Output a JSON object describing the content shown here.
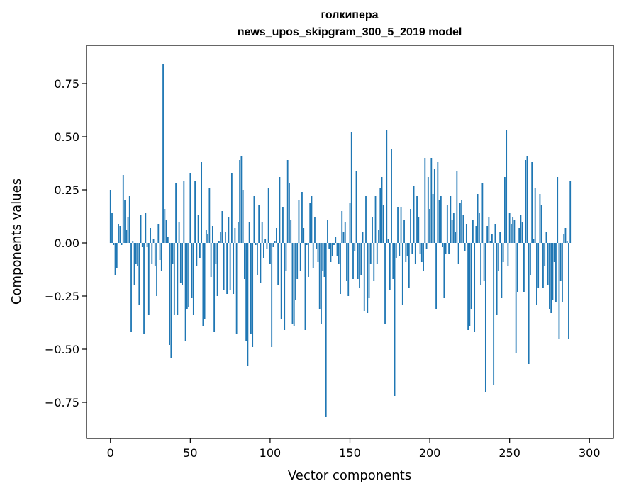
{
  "chart_data": {
    "type": "bar",
    "title": "голкипера",
    "subtitle": "news_upos_skipgram_300_5_2019 model",
    "xlabel": "Vector components",
    "ylabel": "Components values",
    "xlim": [
      -15,
      315
    ],
    "ylim": [
      -0.92,
      0.93
    ],
    "xticks": [
      0,
      50,
      100,
      150,
      200,
      250,
      300
    ],
    "yticks": [
      -0.75,
      -0.5,
      -0.25,
      0.0,
      0.25,
      0.5,
      0.75
    ],
    "xtick_labels": [
      "0",
      "50",
      "100",
      "150",
      "200",
      "250",
      "300"
    ],
    "ytick_labels": [
      "−0.75",
      "−0.50",
      "−0.25",
      "0.00",
      "0.25",
      "0.50",
      "0.75"
    ],
    "grid": false,
    "bar_color": "#1f77b4",
    "values": [
      0.25,
      0.14,
      -0.01,
      -0.15,
      -0.12,
      0.09,
      0.08,
      -0.01,
      0.32,
      0.2,
      0.06,
      0.12,
      0.22,
      -0.42,
      0.01,
      -0.2,
      -0.1,
      -0.11,
      -0.29,
      0.13,
      -0.02,
      -0.43,
      0.14,
      -0.02,
      -0.34,
      0.07,
      -0.1,
      0.02,
      -0.11,
      -0.25,
      0.09,
      -0.08,
      -0.13,
      0.84,
      0.16,
      0.11,
      0.03,
      -0.48,
      -0.54,
      -0.1,
      -0.34,
      0.28,
      -0.34,
      0.1,
      -0.19,
      -0.2,
      0.29,
      -0.46,
      -0.31,
      -0.3,
      0.33,
      -0.26,
      -0.34,
      0.29,
      -0.11,
      0.13,
      -0.07,
      0.38,
      -0.39,
      -0.36,
      0.06,
      0.04,
      0.26,
      -0.16,
      0.08,
      -0.42,
      -0.1,
      -0.25,
      0.01,
      0.05,
      0.15,
      -0.22,
      0.05,
      -0.24,
      0.12,
      -0.22,
      0.33,
      -0.24,
      0.07,
      -0.43,
      0.1,
      0.39,
      0.41,
      0.25,
      -0.17,
      -0.46,
      -0.58,
      0.1,
      -0.43,
      -0.49,
      0.22,
      -0.01,
      -0.15,
      0.18,
      -0.19,
      0.1,
      -0.07,
      0.02,
      -0.03,
      0.26,
      -0.1,
      -0.49,
      -0.02,
      0.01,
      0.07,
      -0.2,
      0.31,
      -0.36,
      0.17,
      -0.41,
      -0.13,
      0.39,
      0.28,
      0.11,
      -0.38,
      -0.39,
      -0.27,
      -0.17,
      0.2,
      -0.13,
      0.24,
      0.07,
      -0.41,
      -0.01,
      -0.16,
      0.19,
      0.22,
      -0.12,
      0.12,
      -0.03,
      -0.09,
      -0.31,
      -0.38,
      -0.13,
      -0.16,
      -0.82,
      0.11,
      -0.03,
      -0.09,
      -0.06,
      -0.01,
      0.03,
      -0.06,
      -0.1,
      -0.24,
      0.15,
      0.05,
      0.1,
      -0.18,
      -0.25,
      0.19,
      0.52,
      -0.17,
      -0.04,
      0.34,
      -0.17,
      -0.21,
      -0.15,
      0.05,
      -0.32,
      0.22,
      -0.33,
      -0.26,
      -0.1,
      0.12,
      -0.18,
      0.22,
      -0.1,
      0.06,
      0.26,
      0.31,
      0.18,
      -0.38,
      0.53,
      0.02,
      -0.22,
      0.44,
      -0.17,
      -0.72,
      -0.07,
      0.17,
      -0.06,
      0.17,
      -0.29,
      0.11,
      -0.09,
      -0.06,
      -0.21,
      0.16,
      -0.05,
      0.27,
      -0.1,
      0.22,
      0.12,
      -0.05,
      -0.09,
      -0.13,
      0.4,
      -0.03,
      0.31,
      0.16,
      0.4,
      0.23,
      0.35,
      -0.31,
      0.38,
      0.2,
      0.22,
      -0.02,
      -0.26,
      -0.05,
      0.18,
      -0.05,
      0.22,
      0.11,
      0.14,
      0.05,
      0.34,
      -0.1,
      0.19,
      0.2,
      0.13,
      -0.04,
      0.09,
      -0.41,
      -0.39,
      -0.31,
      0.11,
      -0.42,
      0.08,
      0.23,
      0.14,
      -0.2,
      0.28,
      -0.18,
      -0.7,
      0.08,
      0.12,
      0.01,
      0.04,
      -0.67,
      0.09,
      -0.34,
      -0.13,
      0.05,
      -0.26,
      -0.09,
      0.31,
      0.53,
      -0.11,
      0.14,
      0.09,
      0.12,
      0.11,
      -0.52,
      -0.23,
      0.07,
      0.13,
      0.1,
      -0.23,
      0.39,
      0.41,
      -0.57,
      -0.15,
      0.38,
      0.02,
      0.26,
      -0.29,
      -0.21,
      0.23,
      0.18,
      -0.21,
      -0.11,
      0.05,
      -0.2,
      -0.31,
      -0.33,
      -0.27,
      -0.09,
      -0.28,
      0.31,
      -0.45,
      -0.18,
      -0.28,
      0.04,
      0.07,
      0.01,
      -0.45,
      0.29
    ]
  }
}
